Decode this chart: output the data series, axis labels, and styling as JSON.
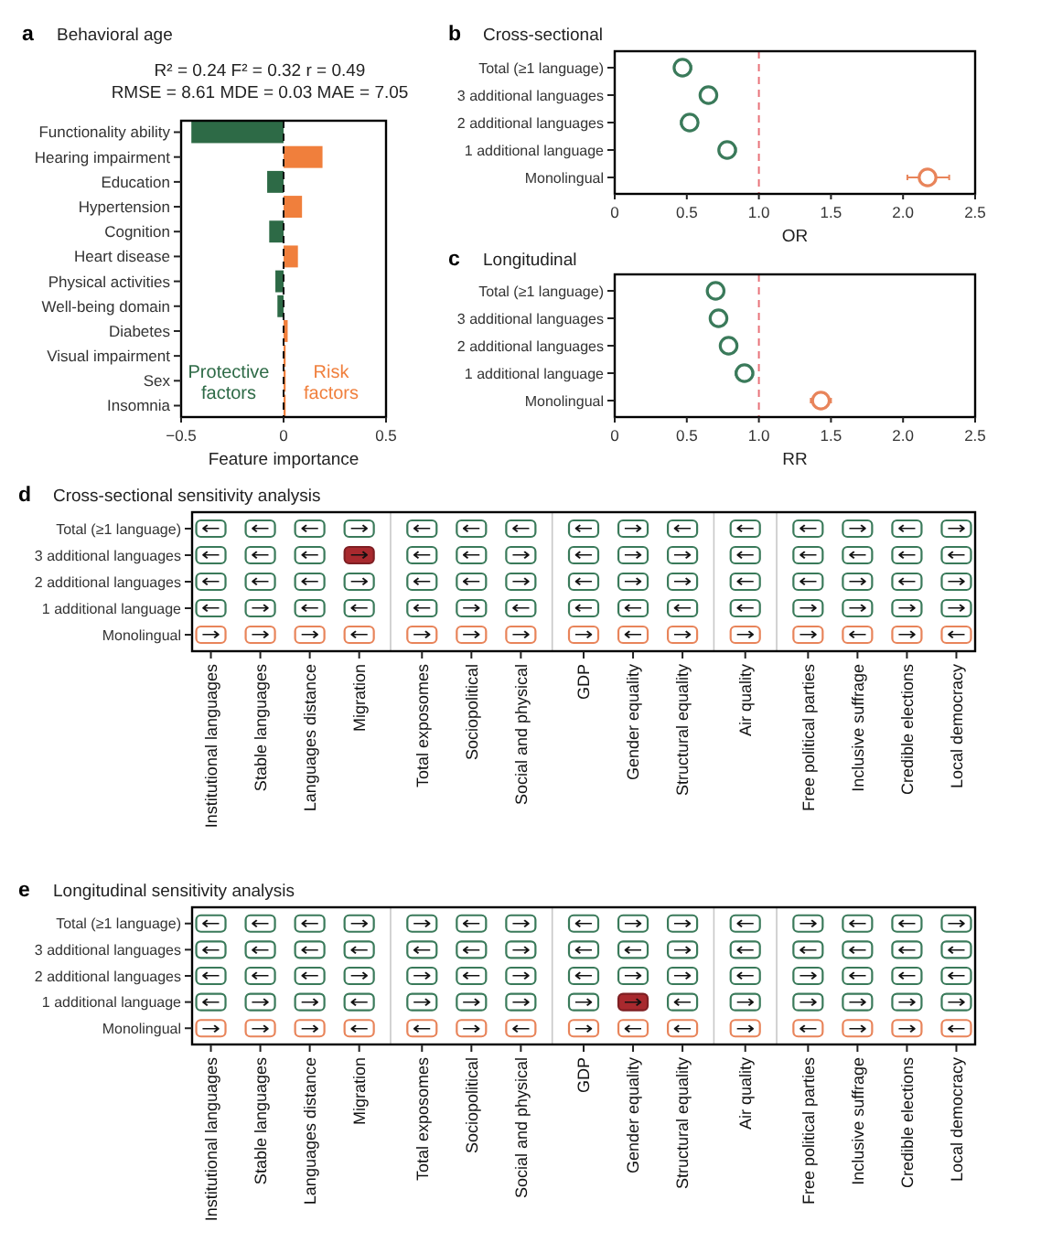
{
  "chart_data": [
    {
      "type": "bar",
      "orientation": "horizontal",
      "stacked": true,
      "annotations": [
        "a"
      ],
      "title": "Behavioral age",
      "subtitle": "R² = 0.24 F² = 0.32 r = 0.49\nRMSE = 8.61 MDE = 0.03 MAE = 7.05",
      "xlabel": "Feature importance",
      "categories": [
        "Functionality ability",
        "Hearing impairment",
        "Education",
        "Hypertension",
        "Cognition",
        "Heart disease",
        "Physical activities",
        "Well-being domain",
        "Diabetes",
        "Visual impairment",
        "Sex",
        "Insomnia"
      ],
      "series": [
        {
          "name": "Protective factors",
          "color": "#2d6a46",
          "values": [
            -0.45,
            null,
            -0.08,
            null,
            -0.07,
            null,
            -0.04,
            -0.03,
            null,
            null,
            null,
            null
          ]
        },
        {
          "name": "Risk factors",
          "color": "#f07f3c",
          "values": [
            null,
            0.19,
            null,
            0.09,
            null,
            0.07,
            null,
            null,
            0.02,
            0.01,
            0.01,
            0.01
          ]
        }
      ],
      "xlim": [
        -0.5,
        0.5
      ],
      "xticks": [
        {
          "value": -0.5,
          "label": "−0.5"
        },
        0,
        0.5
      ],
      "ref_lines": [
        {
          "axis": "x",
          "value": 0,
          "color": "#111111",
          "line_style": "dashed"
        }
      ],
      "legend": "bottom"
    },
    {
      "type": "scatter",
      "orientation": "horizontal",
      "annotations": [
        "b"
      ],
      "title": "Cross-sectional",
      "xlabel": "OR",
      "categories": [
        "Total (≥1 language)",
        "3 additional languages",
        "2 additional languages",
        "1 additional language",
        "Monolingual"
      ],
      "values": [
        0.47,
        0.65,
        0.52,
        0.78,
        2.17
      ],
      "errors": [
        [
          0.42,
          0.53
        ],
        [
          0.59,
          0.7
        ],
        [
          0.46,
          0.57
        ],
        [
          0.73,
          0.84
        ],
        [
          2.03,
          2.32
        ]
      ],
      "colors": [
        "#3a7a5a",
        "#3a7a5a",
        "#3a7a5a",
        "#3a7a5a",
        "#e8845a"
      ],
      "marker": "circle",
      "xlim": [
        0,
        2.5
      ],
      "xticks": [
        0,
        0.5,
        {
          "value": 1,
          "label": "1.0"
        },
        1.5,
        {
          "value": 2,
          "label": "2.0"
        },
        2.5
      ],
      "ref_lines": [
        {
          "axis": "x",
          "value": 1,
          "color": "#e8737a",
          "line_style": "dashed"
        }
      ]
    },
    {
      "type": "scatter",
      "orientation": "horizontal",
      "annotations": [
        "c"
      ],
      "title": "Longitudinal",
      "xlabel": "RR",
      "categories": [
        "Total (≥1 language)",
        "3 additional languages",
        "2 additional languages",
        "1 additional language",
        "Monolingual"
      ],
      "values": [
        0.7,
        0.72,
        0.79,
        0.9,
        1.43
      ],
      "errors": [
        [
          0.65,
          0.75
        ],
        [
          0.67,
          0.77
        ],
        [
          0.74,
          0.85
        ],
        [
          0.84,
          0.96
        ],
        [
          1.36,
          1.5
        ]
      ],
      "colors": [
        "#3a7a5a",
        "#3a7a5a",
        "#3a7a5a",
        "#3a7a5a",
        "#e8845a"
      ],
      "marker": "circle",
      "xlim": [
        0,
        2.5
      ],
      "xticks": [
        0,
        0.5,
        {
          "value": 1,
          "label": "1.0"
        },
        1.5,
        {
          "value": 2,
          "label": "2.0"
        },
        2.5
      ],
      "ref_lines": [
        {
          "axis": "x",
          "value": 1,
          "color": "#e8737a",
          "line_style": "dashed"
        }
      ]
    },
    {
      "type": "heatmap",
      "annotations": [
        "d"
      ],
      "title": "Cross-sectional sensitivity analysis",
      "categories": [
        "Institutional languages",
        "Stable languages",
        "Languages distance",
        "Migration",
        "Total exposomes",
        "Sociopolitical",
        "Social and physical",
        "GDP",
        "Gender equality",
        "Structural equality",
        "Air quality",
        "Free political parties",
        "Inclusive suffrage",
        "Credible elections",
        "Local democracy"
      ],
      "y_categories": [
        "Total (≥1 language)",
        "3 additional languages",
        "2 additional languages",
        "1 additional language",
        "Monolingual"
      ],
      "cells": [
        [
          null,
          null,
          null,
          null,
          null,
          null,
          null,
          null,
          null,
          null,
          null,
          null,
          null,
          null,
          null
        ],
        [
          null,
          null,
          null,
          null,
          null,
          null,
          null,
          null,
          null,
          null,
          null,
          null,
          null,
          null,
          null
        ],
        [
          null,
          null,
          null,
          null,
          null,
          null,
          null,
          null,
          null,
          null,
          null,
          null,
          null,
          null,
          null
        ],
        [
          null,
          null,
          null,
          null,
          null,
          null,
          null,
          null,
          null,
          null,
          null,
          null,
          null,
          null,
          null
        ],
        [
          null,
          null,
          null,
          null,
          null,
          null,
          null,
          null,
          null,
          null,
          null,
          null,
          null,
          null,
          null
        ]
      ],
      "cell_labels": [
        [
          "←",
          "←",
          "←",
          "→",
          "←",
          "←",
          "←",
          "←",
          "→",
          "←",
          "←",
          "←",
          "→",
          "←",
          "→"
        ],
        [
          "←",
          "←",
          "←",
          "→",
          "←",
          "←",
          "→",
          "←",
          "→",
          "→",
          "←",
          "←",
          "←",
          "←",
          "←"
        ],
        [
          "←",
          "←",
          "←",
          "→",
          "←",
          "←",
          "→",
          "←",
          "→",
          "→",
          "←",
          "←",
          "→",
          "←",
          "→"
        ],
        [
          "←",
          "→",
          "←",
          "←",
          "←",
          "→",
          "←",
          "←",
          "←",
          "←",
          "←",
          "→",
          "→",
          "→",
          "→"
        ],
        [
          "→",
          "→",
          "→",
          "←",
          "→",
          "→",
          "→",
          "→",
          "←",
          "→",
          "→",
          "→",
          "←",
          "→",
          "←"
        ]
      ],
      "colors": [
        [
          "#3a7a5a",
          "#3a7a5a",
          "#3a7a5a",
          "#3a7a5a",
          "#3a7a5a",
          "#3a7a5a",
          "#3a7a5a",
          "#3a7a5a",
          "#3a7a5a",
          "#3a7a5a",
          "#3a7a5a",
          "#3a7a5a",
          "#3a7a5a",
          "#3a7a5a",
          "#3a7a5a"
        ],
        [
          "#3a7a5a",
          "#3a7a5a",
          "#3a7a5a",
          "#a8292e",
          "#3a7a5a",
          "#3a7a5a",
          "#3a7a5a",
          "#3a7a5a",
          "#3a7a5a",
          "#3a7a5a",
          "#3a7a5a",
          "#3a7a5a",
          "#3a7a5a",
          "#3a7a5a",
          "#3a7a5a"
        ],
        [
          "#3a7a5a",
          "#3a7a5a",
          "#3a7a5a",
          "#3a7a5a",
          "#3a7a5a",
          "#3a7a5a",
          "#3a7a5a",
          "#3a7a5a",
          "#3a7a5a",
          "#3a7a5a",
          "#3a7a5a",
          "#3a7a5a",
          "#3a7a5a",
          "#3a7a5a",
          "#3a7a5a"
        ],
        [
          "#3a7a5a",
          "#3a7a5a",
          "#3a7a5a",
          "#3a7a5a",
          "#3a7a5a",
          "#3a7a5a",
          "#3a7a5a",
          "#3a7a5a",
          "#3a7a5a",
          "#3a7a5a",
          "#3a7a5a",
          "#3a7a5a",
          "#3a7a5a",
          "#3a7a5a",
          "#3a7a5a"
        ],
        [
          "#e8845a",
          "#e8845a",
          "#e8845a",
          "#e8845a",
          "#e8845a",
          "#e8845a",
          "#e8845a",
          "#e8845a",
          "#e8845a",
          "#e8845a",
          "#e8845a",
          "#e8845a",
          "#e8845a",
          "#e8845a",
          "#e8845a"
        ]
      ]
    },
    {
      "type": "heatmap",
      "annotations": [
        "e"
      ],
      "title": "Longitudinal sensitivity analysis",
      "categories": [
        "Institutional languages",
        "Stable languages",
        "Languages distance",
        "Migration",
        "Total exposomes",
        "Sociopolitical",
        "Social and physical",
        "GDP",
        "Gender equality",
        "Structural equality",
        "Air quality",
        "Free political parties",
        "Inclusive suffrage",
        "Credible elections",
        "Local democracy"
      ],
      "y_categories": [
        "Total (≥1 language)",
        "3 additional languages",
        "2 additional languages",
        "1 additional language",
        "Monolingual"
      ],
      "cells": [
        [
          null,
          null,
          null,
          null,
          null,
          null,
          null,
          null,
          null,
          null,
          null,
          null,
          null,
          null,
          null
        ],
        [
          null,
          null,
          null,
          null,
          null,
          null,
          null,
          null,
          null,
          null,
          null,
          null,
          null,
          null,
          null
        ],
        [
          null,
          null,
          null,
          null,
          null,
          null,
          null,
          null,
          null,
          null,
          null,
          null,
          null,
          null,
          null
        ],
        [
          null,
          null,
          null,
          null,
          null,
          null,
          null,
          null,
          null,
          null,
          null,
          null,
          null,
          null,
          null
        ],
        [
          null,
          null,
          null,
          null,
          null,
          null,
          null,
          null,
          null,
          null,
          null,
          null,
          null,
          null,
          null
        ]
      ],
      "cell_labels": [
        [
          "←",
          "←",
          "←",
          "→",
          "→",
          "←",
          "→",
          "←",
          "→",
          "→",
          "←",
          "→",
          "←",
          "←",
          "→"
        ],
        [
          "←",
          "←",
          "←",
          "←",
          "←",
          "←",
          "→",
          "←",
          "←",
          "→",
          "←",
          "←",
          "←",
          "←",
          "←"
        ],
        [
          "←",
          "←",
          "←",
          "→",
          "→",
          "←",
          "→",
          "←",
          "→",
          "→",
          "←",
          "→",
          "←",
          "←",
          "←"
        ],
        [
          "←",
          "→",
          "→",
          "←",
          "→",
          "→",
          "→",
          "→",
          "→",
          "←",
          "→",
          "→",
          "→",
          "→",
          "→"
        ],
        [
          "→",
          "→",
          "→",
          "←",
          "←",
          "→",
          "←",
          "→",
          "←",
          "←",
          "→",
          "←",
          "→",
          "→",
          "←"
        ]
      ],
      "colors": [
        [
          "#3a7a5a",
          "#3a7a5a",
          "#3a7a5a",
          "#3a7a5a",
          "#3a7a5a",
          "#3a7a5a",
          "#3a7a5a",
          "#3a7a5a",
          "#3a7a5a",
          "#3a7a5a",
          "#3a7a5a",
          "#3a7a5a",
          "#3a7a5a",
          "#3a7a5a",
          "#3a7a5a"
        ],
        [
          "#3a7a5a",
          "#3a7a5a",
          "#3a7a5a",
          "#3a7a5a",
          "#3a7a5a",
          "#3a7a5a",
          "#3a7a5a",
          "#3a7a5a",
          "#3a7a5a",
          "#3a7a5a",
          "#3a7a5a",
          "#3a7a5a",
          "#3a7a5a",
          "#3a7a5a",
          "#3a7a5a"
        ],
        [
          "#3a7a5a",
          "#3a7a5a",
          "#3a7a5a",
          "#3a7a5a",
          "#3a7a5a",
          "#3a7a5a",
          "#3a7a5a",
          "#3a7a5a",
          "#3a7a5a",
          "#3a7a5a",
          "#3a7a5a",
          "#3a7a5a",
          "#3a7a5a",
          "#3a7a5a",
          "#3a7a5a"
        ],
        [
          "#3a7a5a",
          "#3a7a5a",
          "#3a7a5a",
          "#3a7a5a",
          "#3a7a5a",
          "#3a7a5a",
          "#3a7a5a",
          "#3a7a5a",
          "#a8292e",
          "#3a7a5a",
          "#3a7a5a",
          "#3a7a5a",
          "#3a7a5a",
          "#3a7a5a",
          "#3a7a5a"
        ],
        [
          "#e8845a",
          "#e8845a",
          "#e8845a",
          "#e8845a",
          "#e8845a",
          "#e8845a",
          "#e8845a",
          "#e8845a",
          "#e8845a",
          "#e8845a",
          "#e8845a",
          "#e8845a",
          "#e8845a",
          "#e8845a",
          "#e8845a"
        ]
      ]
    }
  ]
}
